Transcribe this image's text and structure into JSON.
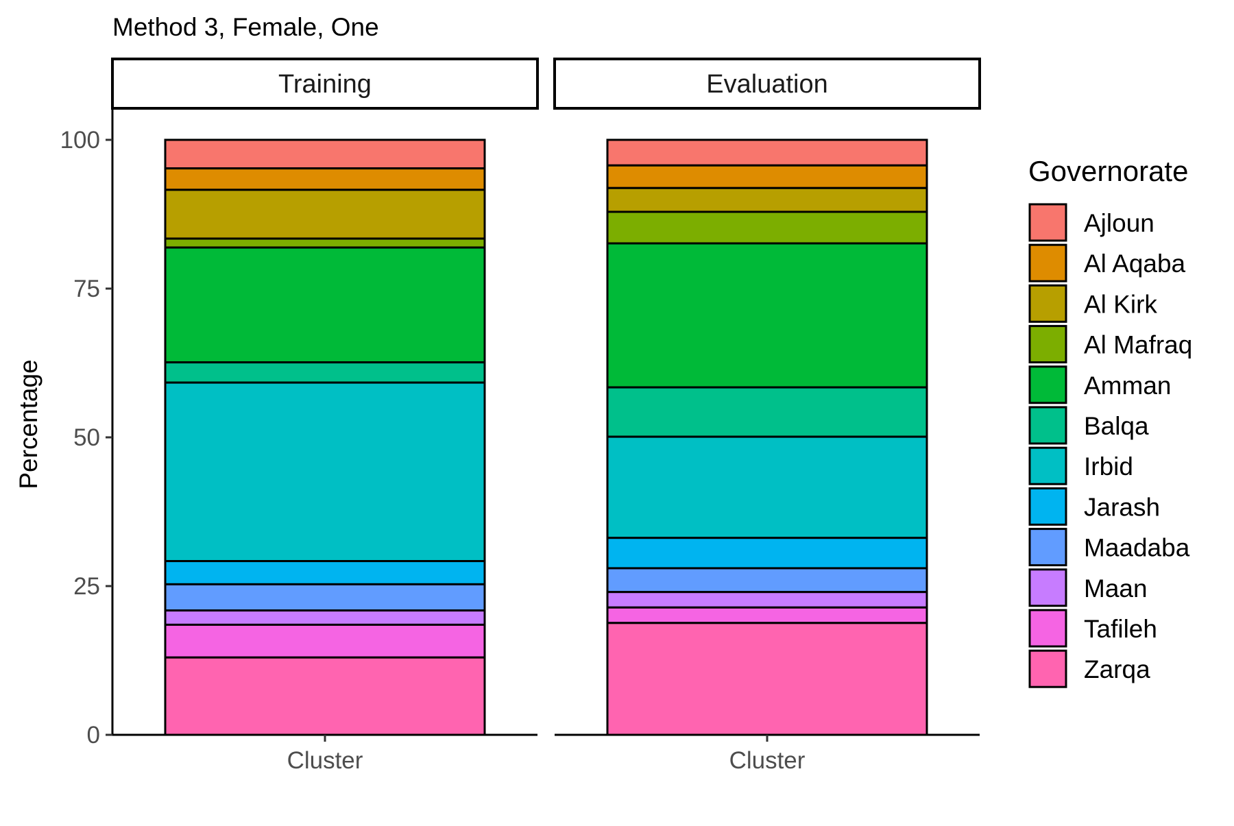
{
  "chart_data": {
    "type": "bar",
    "stacked": true,
    "title": "Method 3, Female, One",
    "xlabel": "",
    "ylabel": "Percentage",
    "ylim": [
      0,
      100
    ],
    "yticks": [
      0,
      25,
      50,
      75,
      100
    ],
    "legend": {
      "title": "Governorate",
      "position": "right"
    },
    "grid": false,
    "categories": [
      "Cluster"
    ],
    "colors": {
      "Ajloun": "#F8766D",
      "Al Aqaba": "#DE8C00",
      "Al Kirk": "#B79F00",
      "Al Mafraq": "#7CAE00",
      "Amman": "#00BA38",
      "Balqa": "#00C08B",
      "Irbid": "#00BFC4",
      "Jarash": "#00B4F0",
      "Maadaba": "#619CFF",
      "Maan": "#C77CFF",
      "Tafileh": "#F564E3",
      "Zarqa": "#FF64B0"
    },
    "panels": [
      {
        "label": "Training",
        "category": "Cluster",
        "series": [
          {
            "name": "Ajloun",
            "value": 4.8
          },
          {
            "name": "Al Aqaba",
            "value": 3.6
          },
          {
            "name": "Al Kirk",
            "value": 8.2
          },
          {
            "name": "Al Mafraq",
            "value": 1.5
          },
          {
            "name": "Amman",
            "value": 19.3
          },
          {
            "name": "Balqa",
            "value": 3.4
          },
          {
            "name": "Irbid",
            "value": 30.0
          },
          {
            "name": "Jarash",
            "value": 3.9
          },
          {
            "name": "Maadaba",
            "value": 4.4
          },
          {
            "name": "Maan",
            "value": 2.4
          },
          {
            "name": "Tafileh",
            "value": 5.5
          },
          {
            "name": "Zarqa",
            "value": 13.0
          }
        ]
      },
      {
        "label": "Evaluation",
        "category": "Cluster",
        "series": [
          {
            "name": "Ajloun",
            "value": 4.3
          },
          {
            "name": "Al Aqaba",
            "value": 3.8
          },
          {
            "name": "Al Kirk",
            "value": 4.0
          },
          {
            "name": "Al Mafraq",
            "value": 5.3
          },
          {
            "name": "Amman",
            "value": 24.2
          },
          {
            "name": "Balqa",
            "value": 8.3
          },
          {
            "name": "Irbid",
            "value": 17.0
          },
          {
            "name": "Jarash",
            "value": 5.1
          },
          {
            "name": "Maadaba",
            "value": 4.0
          },
          {
            "name": "Maan",
            "value": 2.6
          },
          {
            "name": "Tafileh",
            "value": 2.6
          },
          {
            "name": "Zarqa",
            "value": 18.8
          }
        ]
      }
    ]
  }
}
